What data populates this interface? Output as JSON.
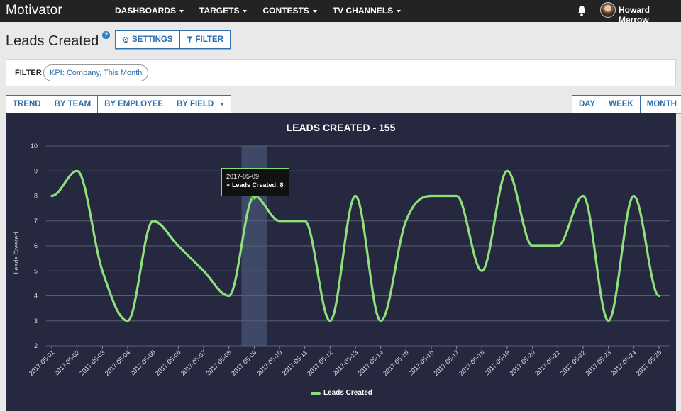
{
  "app": {
    "brand": "Motivator"
  },
  "nav": {
    "items": [
      {
        "label": "DASHBOARDS"
      },
      {
        "label": "TARGETS"
      },
      {
        "label": "CONTESTS"
      },
      {
        "label": "TV CHANNELS"
      }
    ],
    "user_name": "Howard Merrow"
  },
  "page": {
    "title": "Leads Created",
    "help": "?"
  },
  "toolbar": {
    "settings_label": "SETTINGS",
    "filter_label": "FILTER"
  },
  "filter": {
    "label": "FILTER",
    "chip": "KPI: Company, This Month"
  },
  "view_tabs": {
    "trend": "TREND",
    "by_team": "BY TEAM",
    "by_employee": "BY EMPLOYEE",
    "by_field": "BY FIELD"
  },
  "period_tabs": {
    "day": "DAY",
    "week": "WEEK",
    "month": "MONTH"
  },
  "tooltip": {
    "date": "2017-05-09",
    "label": "Leads Created: 8"
  },
  "colors": {
    "nav_bg": "#232323",
    "accent": "#2a6eb0",
    "chart_bg": "#25283e",
    "series": "#8ee07a"
  },
  "chart_data": {
    "type": "line",
    "title": "LEADS CREATED - 155",
    "ylabel": "Leads Created",
    "xlabel": "",
    "ylim": [
      2,
      10
    ],
    "yticks": [
      2,
      3,
      4,
      5,
      6,
      7,
      8,
      9,
      10
    ],
    "grid": true,
    "legend": "bottom-center",
    "x": [
      "2017-05-01",
      "2017-05-02",
      "2017-05-03",
      "2017-05-04",
      "2017-05-05",
      "2017-05-06",
      "2017-05-07",
      "2017-05-08",
      "2017-05-09",
      "2017-05-10",
      "2017-05-11",
      "2017-05-12",
      "2017-05-13",
      "2017-05-14",
      "2017-05-15",
      "2017-05-16",
      "2017-05-17",
      "2017-05-18",
      "2017-05-19",
      "2017-05-20",
      "2017-05-21",
      "2017-05-22",
      "2017-05-23",
      "2017-05-24",
      "2017-05-25"
    ],
    "series": [
      {
        "name": "Leads Created",
        "values": [
          8,
          9,
          5,
          3,
          7,
          6,
          5,
          4,
          8,
          7,
          7,
          3,
          8,
          3,
          7,
          8,
          8,
          5,
          9,
          6,
          6,
          8,
          3,
          8,
          4
        ]
      }
    ],
    "highlight_index": 8
  }
}
